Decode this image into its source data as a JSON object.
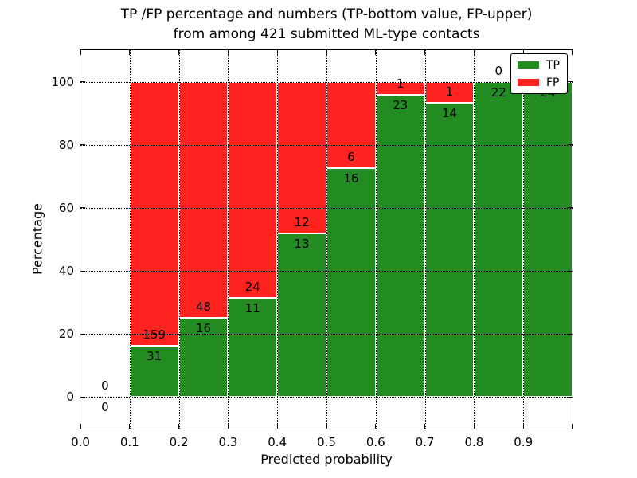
{
  "chart_data": {
    "type": "bar",
    "stacked": true,
    "normalization": "percent_of_bin",
    "title_lines": [
      "TP /FP percentage and numbers (TP-bottom value, FP-upper)",
      "from among 421 submitted ML-type contacts"
    ],
    "xlabel": "Predicted probability",
    "ylabel": "Percentage",
    "xlim": [
      0.0,
      1.0
    ],
    "ylim": [
      -10,
      110
    ],
    "x_tick_labels": [
      "0.0",
      "0.1",
      "0.2",
      "0.3",
      "0.4",
      "0.5",
      "0.6",
      "0.7",
      "0.8",
      "0.9"
    ],
    "y_tick_labels": [
      "0",
      "20",
      "40",
      "60",
      "80",
      "100"
    ],
    "grid": {
      "linestyle": "dotted",
      "color": "#000000",
      "above_bars": true
    },
    "total_contacts": 421,
    "bin_edges": [
      0.0,
      0.1,
      0.2,
      0.3,
      0.4,
      0.5,
      0.6,
      0.7,
      0.8,
      0.9,
      1.0
    ],
    "series": [
      {
        "name": "TP",
        "color": "#228B22",
        "counts": [
          0,
          31,
          16,
          11,
          13,
          16,
          23,
          14,
          22,
          24
        ]
      },
      {
        "name": "FP",
        "color": "#FF2420",
        "counts": [
          0,
          159,
          48,
          24,
          12,
          6,
          1,
          1,
          0,
          0
        ]
      }
    ],
    "tp_percent_by_bin": [
      null,
      16.3,
      25.0,
      31.4,
      52.0,
      72.7,
      95.8,
      93.3,
      100.0,
      100.0
    ],
    "legend": {
      "position": "upper-right"
    }
  }
}
